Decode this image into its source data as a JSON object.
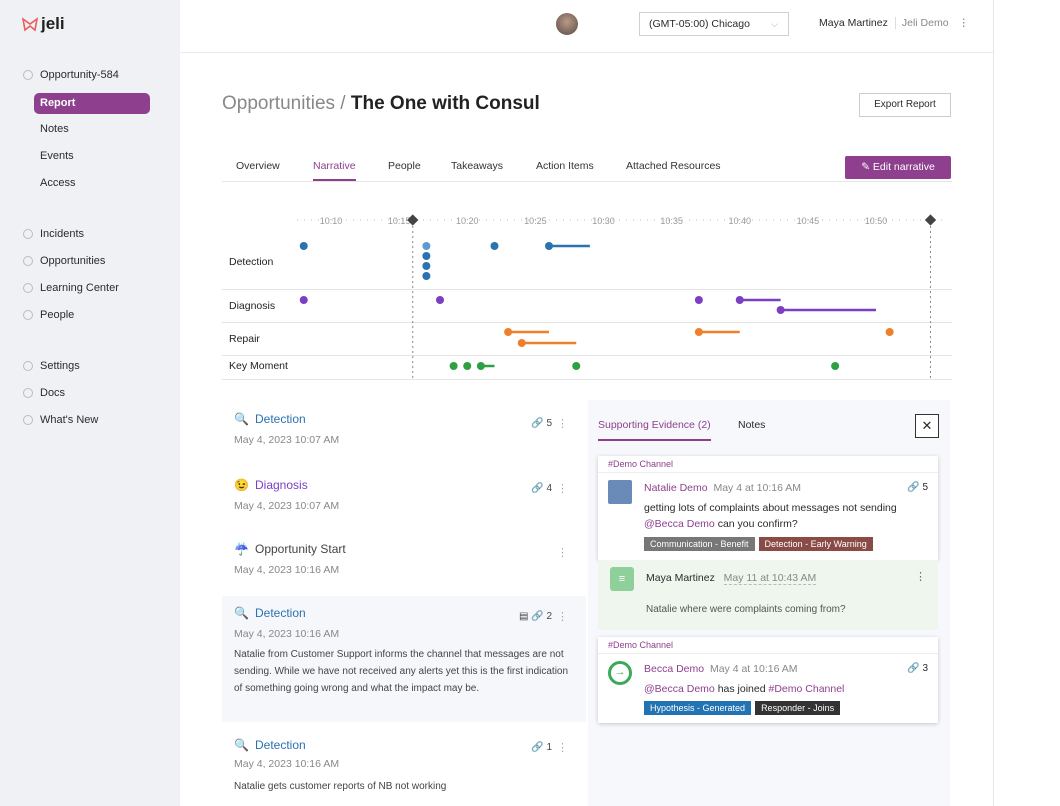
{
  "sidebar": {
    "logo": "jeli",
    "context": "Opportunity-584",
    "sub_items": [
      {
        "label": "Report",
        "active": true
      },
      {
        "label": "Notes"
      },
      {
        "label": "Events"
      },
      {
        "label": "Access"
      }
    ],
    "main_items": [
      {
        "label": "Incidents",
        "icon": "bell-icon"
      },
      {
        "label": "Opportunities",
        "icon": "lightbulb-icon"
      },
      {
        "label": "Learning Center",
        "icon": "chart-icon"
      },
      {
        "label": "People",
        "icon": "person-icon"
      }
    ],
    "bottom_items": [
      {
        "label": "Settings",
        "icon": "gear-icon"
      },
      {
        "label": "Docs",
        "icon": "book-icon"
      },
      {
        "label": "What's New",
        "icon": "bell-icon"
      }
    ]
  },
  "header": {
    "timezone": "(GMT-05:00) Chicago",
    "user": "Maya Martinez",
    "org": "Jeli Demo"
  },
  "page": {
    "breadcrumb_parent": "Opportunities",
    "separator": "/",
    "title": "The One with Consul",
    "export_label": "Export Report",
    "edit_label": "Edit narrative"
  },
  "tabs": [
    {
      "label": "Overview"
    },
    {
      "label": "Narrative",
      "active": true
    },
    {
      "label": "People"
    },
    {
      "label": "Takeaways"
    },
    {
      "label": "Action Items"
    },
    {
      "label": "Attached Resources"
    }
  ],
  "timeline": {
    "ticks": [
      "10:10",
      "10:15",
      "10:20",
      "10:25",
      "10:30",
      "10:35",
      "10:40",
      "10:45",
      "10:50"
    ],
    "range_markers": [
      "10:16",
      "10:54"
    ],
    "lanes": [
      {
        "label": "Detection",
        "color": "#2a72b0",
        "events": [
          {
            "start": "10:08"
          },
          {
            "start": "10:17",
            "highlight": true
          },
          {
            "start": "10:17"
          },
          {
            "start": "10:17"
          },
          {
            "start": "10:17"
          },
          {
            "start": "10:22"
          },
          {
            "start": "10:26",
            "end": "10:29"
          }
        ]
      },
      {
        "label": "Diagnosis",
        "color": "#7b3fc4",
        "events": [
          {
            "start": "10:08"
          },
          {
            "start": "10:18"
          },
          {
            "start": "10:37"
          },
          {
            "start": "10:40",
            "end": "10:43"
          },
          {
            "start": "10:43",
            "end": "10:50"
          }
        ]
      },
      {
        "label": "Repair",
        "color": "#ef7f2a",
        "events": [
          {
            "start": "10:23",
            "end": "10:26"
          },
          {
            "start": "10:24",
            "end": "10:28"
          },
          {
            "start": "10:37",
            "end": "10:40"
          },
          {
            "start": "10:51"
          }
        ]
      },
      {
        "label": "Key Moment",
        "color": "#2ea043",
        "events": [
          {
            "start": "10:19"
          },
          {
            "start": "10:20"
          },
          {
            "start": "10:21",
            "end": "10:22"
          },
          {
            "start": "10:28"
          },
          {
            "start": "10:47"
          }
        ]
      }
    ]
  },
  "narrative": [
    {
      "emoji": "🔍",
      "title": "Detection",
      "color": "#2a72b0",
      "date": "May 4, 2023 10:07 AM",
      "links": "5"
    },
    {
      "emoji": "😉",
      "title": "Diagnosis",
      "color": "#7b3fc4",
      "date": "May 4, 2023 10:07 AM",
      "links": "4"
    },
    {
      "emoji": "☔",
      "title": "Opportunity Start",
      "color": "#444",
      "date": "May 4, 2023 10:16 AM",
      "links": ""
    },
    {
      "emoji": "🔍",
      "title": "Detection",
      "color": "#2a72b0",
      "date": "May 4, 2023 10:16 AM",
      "links": "2",
      "body": "Natalie from Customer Support informs the channel that messages are not sending. While we have not received any alerts yet this is the first indication of something going wrong and what the impact may be."
    },
    {
      "emoji": "🔍",
      "title": "Detection",
      "color": "#2a72b0",
      "date": "May 4, 2023 10:16 AM",
      "links": "1",
      "body": "Natalie gets customer reports of NB not working"
    }
  ],
  "panel": {
    "tab_evidence": "Supporting Evidence (2)",
    "tab_notes": "Notes",
    "close": "✕",
    "card1": {
      "channel": "#Demo Channel",
      "author": "Natalie Demo",
      "time": "May 4 at 10:16 AM",
      "links": "5",
      "text": "getting lots of complaints about messages not sending",
      "mention": "@Becca Demo",
      "text2": "can you confirm?",
      "tags": [
        {
          "label": "Communication - Benefit",
          "color": "#777777"
        },
        {
          "label": "Detection - Early Warning",
          "color": "#8a4a45"
        }
      ]
    },
    "note": {
      "author": "Maya Martinez",
      "time": "May 11 at 10:43 AM",
      "text": "Natalie where were complaints coming from?"
    },
    "card2": {
      "channel": "#Demo Channel",
      "author": "Becca Demo",
      "time": "May 4 at 10:16 AM",
      "links": "3",
      "mention": "@Becca Demo",
      "text": "has joined",
      "channel_link": "#Demo Channel",
      "tags": [
        {
          "label": "Hypothesis - Generated",
          "color": "#2273b3"
        },
        {
          "label": "Responder - Joins",
          "color": "#333333"
        }
      ]
    }
  }
}
